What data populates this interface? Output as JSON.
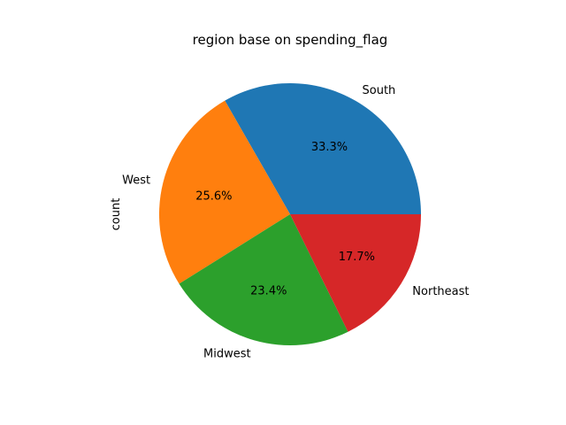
{
  "chart_data": {
    "type": "pie",
    "title": "region base on spending_flag",
    "ylabel": "count",
    "slices": [
      {
        "label": "South",
        "percent": 33.3,
        "pct_text": "33.3%",
        "color": "#1f77b4"
      },
      {
        "label": "West",
        "percent": 25.6,
        "pct_text": "25.6%",
        "color": "#ff7f0e"
      },
      {
        "label": "Midwest",
        "percent": 23.4,
        "pct_text": "23.4%",
        "color": "#2ca02c"
      },
      {
        "label": "Northeast",
        "percent": 17.7,
        "pct_text": "17.7%",
        "color": "#d62728"
      }
    ],
    "start_angle_deg": 0,
    "direction": "counterclockwise",
    "legend": "none"
  }
}
